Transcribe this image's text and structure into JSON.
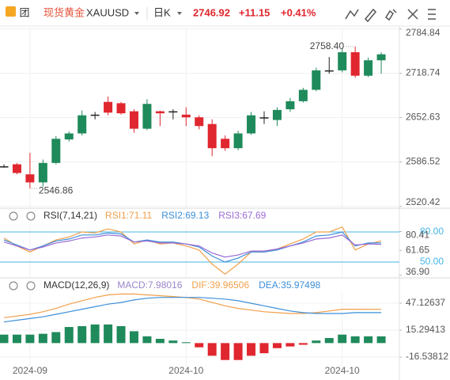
{
  "header": {
    "icon_text": "团",
    "name": "现货黄金",
    "symbol": "XAUUSD",
    "period": "日K",
    "price": "2746.92",
    "change": "+11.15",
    "change_pct": "+0.41%"
  },
  "chart_data": [
    {
      "type": "candlestick",
      "categories": [
        null,
        null,
        "2024-09",
        null,
        null,
        null,
        null,
        null,
        null,
        null,
        null,
        null,
        null,
        null,
        "2024-10",
        null,
        null,
        null,
        null,
        null,
        null,
        null,
        null,
        null,
        null,
        null,
        "2024-10",
        null,
        null,
        null
      ],
      "open": [
        2580,
        2583,
        2568,
        2556,
        2585,
        2620,
        2629,
        2657,
        2676,
        2674,
        2662,
        2636,
        2662,
        2662,
        2657,
        2653,
        2643,
        2621,
        2607,
        2629,
        2653,
        2649,
        2665,
        2677,
        2694,
        2723,
        2723,
        2750,
        2715,
        2738
      ],
      "high": [
        2583,
        2585,
        2600,
        2590,
        2625,
        2632,
        2663,
        2661,
        2684,
        2676,
        2665,
        2680,
        2663,
        2665,
        2668,
        2656,
        2650,
        2626,
        2633,
        2661,
        2662,
        2668,
        2682,
        2697,
        2727,
        2743,
        2756,
        2758.4,
        2742,
        2750
      ],
      "low": [
        2578,
        2568,
        2546.86,
        2550,
        2583,
        2617,
        2626,
        2650,
        2656,
        2657,
        2630,
        2634,
        2640,
        2650,
        2640,
        2635,
        2595,
        2603,
        2604,
        2627,
        2643,
        2640,
        2661,
        2675,
        2692,
        2718,
        2720,
        2712,
        2713,
        2718
      ],
      "close": [
        2580,
        2570,
        2556,
        2585,
        2621,
        2629,
        2656,
        2657,
        2660,
        2659,
        2636,
        2673,
        2659,
        2662,
        2653,
        2640,
        2607,
        2607,
        2629,
        2656,
        2653,
        2664,
        2677,
        2694,
        2723,
        2723,
        2750,
        2715,
        2738,
        2746.92
      ],
      "up_color": "#1f8a5b",
      "down_color": "#e0262e",
      "doji_color": "#222222",
      "high_label": "2758.40",
      "low_label": "2546.86",
      "ylim": [
        2518.7,
        2785.4
      ],
      "yticks": [
        2784.84,
        2718.74,
        2652.63,
        2586.52,
        2520.42
      ],
      "grid": true
    },
    {
      "type": "line",
      "title": "RSI(7,14,21)",
      "series": [
        {
          "name": "RSI1:71.11",
          "color": "#f0a04b",
          "values": [
            74,
            66,
            60,
            66,
            72,
            75,
            80,
            79,
            83,
            80,
            68,
            72,
            68,
            69,
            66,
            62,
            48,
            38,
            48,
            60,
            60,
            63,
            68,
            73,
            80,
            80,
            85,
            62,
            68,
            71.11
          ]
        },
        {
          "name": "RSI2:69.13",
          "color": "#3d8fd9",
          "values": [
            72,
            67,
            62,
            66,
            71,
            73,
            77,
            77,
            79,
            78,
            70,
            72,
            70,
            70,
            68,
            65,
            56,
            50,
            54,
            60,
            60,
            62,
            66,
            70,
            76,
            77,
            80,
            66,
            69,
            69.13
          ]
        },
        {
          "name": "RSI3:67.69",
          "color": "#9b6bd6",
          "values": [
            70,
            66,
            62,
            65,
            69,
            71,
            74,
            75,
            77,
            76,
            70,
            71,
            69,
            69,
            68,
            66,
            59,
            55,
            57,
            61,
            61,
            63,
            66,
            69,
            73,
            74,
            77,
            67,
            68,
            67.69
          ]
        }
      ],
      "ref_lines": [
        {
          "value": 80,
          "label": "80.00"
        },
        {
          "value": 50,
          "label": "50.00"
        }
      ],
      "ref_color": "#45b4e6",
      "ylim": [
        35,
        87.9
      ],
      "yticks": [
        80.41,
        61.65,
        {
          "value": 36.9,
          "label": "36.90"
        }
      ],
      "grid": false
    },
    {
      "type": "macd",
      "title": "MACD(12,26,9)",
      "histogram": {
        "name": "MACD:7.98016",
        "color": "#9a85cc",
        "up_color": "#1f8a5b",
        "down_color": "#e0262e",
        "values": [
          10,
          10,
          10,
          11,
          13,
          19,
          20,
          22,
          22,
          20,
          14,
          8,
          5,
          3,
          1,
          -5,
          -15,
          -20,
          -20,
          -15,
          -12,
          -6,
          -4,
          -2,
          3,
          6,
          10,
          8,
          8,
          7.98016
        ]
      },
      "series": [
        {
          "name": "DIF:39.96506",
          "color": "#f0a04b",
          "values": [
            30,
            32,
            34,
            37,
            41,
            46,
            50,
            54,
            57,
            58,
            58,
            57,
            56,
            55,
            54,
            52,
            48,
            44,
            41,
            39,
            37,
            36,
            35,
            35,
            36,
            38,
            40,
            40,
            40,
            39.96506
          ]
        },
        {
          "name": "DEA:35.97498",
          "color": "#3d8fd9",
          "values": [
            25,
            27,
            29,
            31,
            34,
            37,
            40,
            43,
            46,
            48,
            51,
            53,
            54,
            54,
            54,
            54,
            53,
            52,
            50,
            47,
            44,
            41,
            38,
            36,
            35,
            35,
            35,
            36,
            36,
            35.97498
          ]
        }
      ],
      "ylim": [
        -26.8,
        59.3
      ],
      "yticks": [
        47.12637,
        15.29413,
        -16.53812
      ],
      "grid": true
    }
  ]
}
